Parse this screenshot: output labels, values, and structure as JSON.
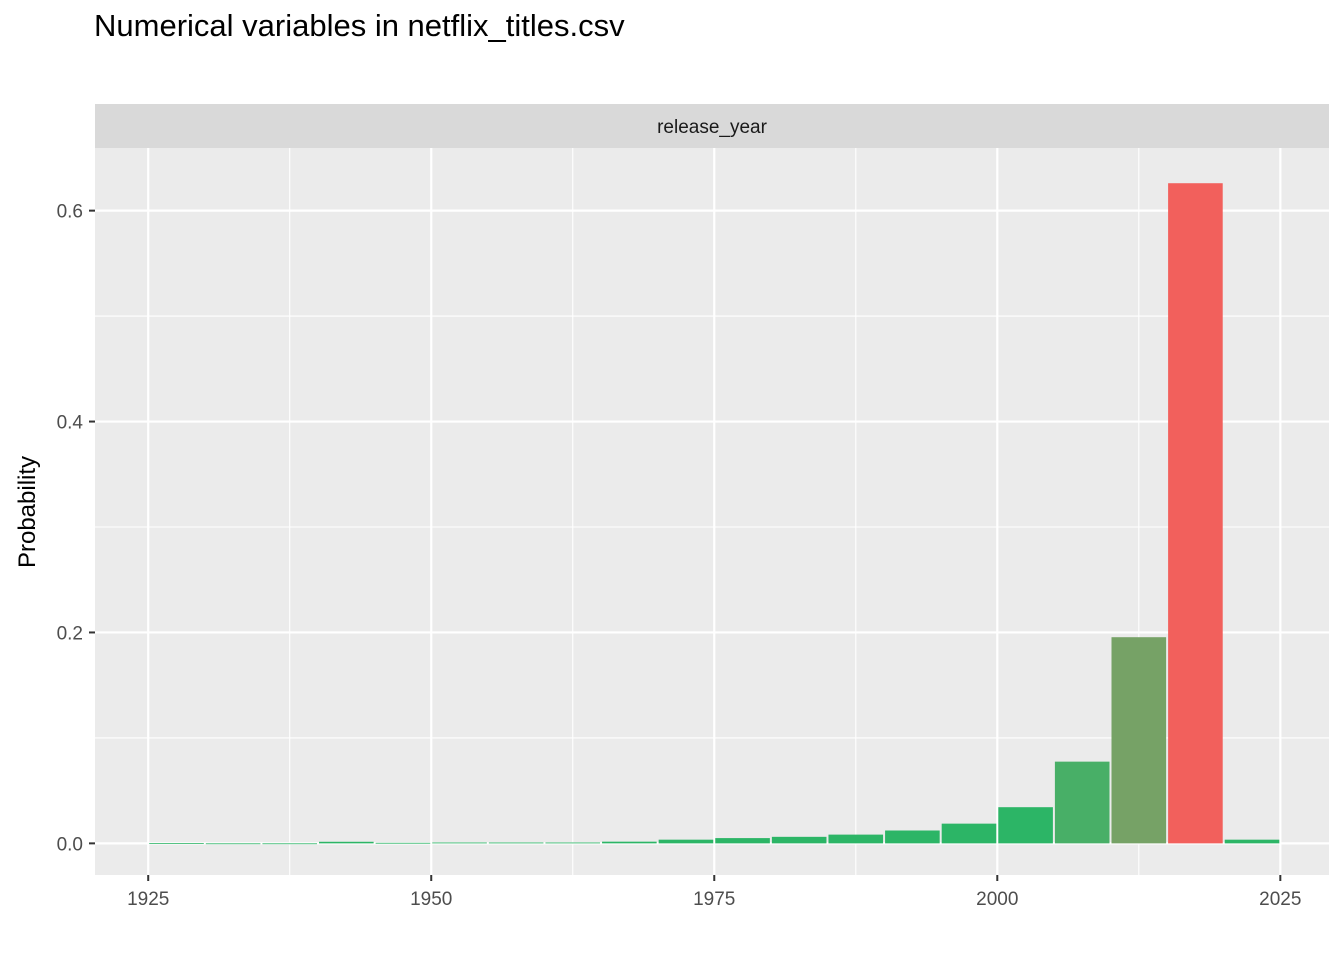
{
  "chart_data": {
    "type": "bar",
    "title": "Numerical variables in netflix_titles.csv",
    "facet_label": "release_year",
    "xlabel": "",
    "ylabel": "Probability",
    "xlim": [
      1920.3,
      2029.3
    ],
    "ylim": [
      -0.03,
      0.6594
    ],
    "x_ticks": [
      1925,
      1950,
      1975,
      2000,
      2025
    ],
    "y_ticks": [
      0.0,
      0.2,
      0.4,
      0.6
    ],
    "y_tick_labels": [
      "0.0",
      "0.2",
      "0.4",
      "0.6"
    ],
    "grid": true,
    "bin_width": 5,
    "bars": [
      {
        "x": 1927.5,
        "value": 0.0002,
        "color": "#2CB566"
      },
      {
        "x": 1932.5,
        "value": 0.0,
        "color": "#2CB566"
      },
      {
        "x": 1937.5,
        "value": 0.0,
        "color": "#2CB566"
      },
      {
        "x": 1942.5,
        "value": 0.0015,
        "color": "#2CB566"
      },
      {
        "x": 1947.5,
        "value": 0.0005,
        "color": "#2CB566"
      },
      {
        "x": 1952.5,
        "value": 0.0008,
        "color": "#2CB566"
      },
      {
        "x": 1957.5,
        "value": 0.0008,
        "color": "#2CB566"
      },
      {
        "x": 1962.5,
        "value": 0.0008,
        "color": "#2CB566"
      },
      {
        "x": 1967.5,
        "value": 0.0016,
        "color": "#2CB566"
      },
      {
        "x": 1972.5,
        "value": 0.0035,
        "color": "#2CB566"
      },
      {
        "x": 1977.5,
        "value": 0.005,
        "color": "#2CB566"
      },
      {
        "x": 1982.5,
        "value": 0.0062,
        "color": "#2CB566"
      },
      {
        "x": 1987.5,
        "value": 0.0083,
        "color": "#2CB566"
      },
      {
        "x": 1992.5,
        "value": 0.0122,
        "color": "#2CB566"
      },
      {
        "x": 1997.5,
        "value": 0.0187,
        "color": "#2CB566"
      },
      {
        "x": 2002.5,
        "value": 0.0343,
        "color": "#2CB566"
      },
      {
        "x": 2007.5,
        "value": 0.0775,
        "color": "#48AF67"
      },
      {
        "x": 2012.5,
        "value": 0.1955,
        "color": "#76A266"
      },
      {
        "x": 2017.5,
        "value": 0.626,
        "color": "#F2605C"
      },
      {
        "x": 2022.5,
        "value": 0.0035,
        "color": "#2CB566"
      }
    ]
  }
}
